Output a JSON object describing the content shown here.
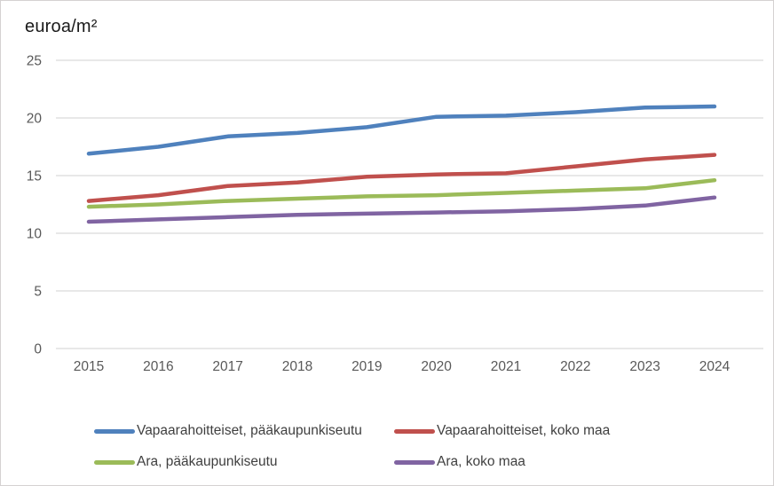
{
  "title": "euroa/m²",
  "chart_data": {
    "type": "line",
    "title": "euroa/m²",
    "xlabel": "",
    "ylabel": "euroa/m²",
    "x": [
      2015,
      2016,
      2017,
      2018,
      2019,
      2020,
      2021,
      2022,
      2023,
      2024
    ],
    "series": [
      {
        "name": "Vapaarahoitteiset, pääkaupunkiseutu",
        "color": "#4F81BD",
        "values": [
          16.9,
          17.5,
          18.4,
          18.7,
          19.2,
          20.1,
          20.2,
          20.5,
          20.9,
          21.0
        ]
      },
      {
        "name": "Vapaarahoitteiset, koko maa",
        "color": "#C0504D",
        "values": [
          12.8,
          13.3,
          14.1,
          14.4,
          14.9,
          15.1,
          15.2,
          15.8,
          16.4,
          16.8
        ]
      },
      {
        "name": "Ara, pääkaupunkiseutu",
        "color": "#9BBB59",
        "values": [
          12.3,
          12.5,
          12.8,
          13.0,
          13.2,
          13.3,
          13.5,
          13.7,
          13.9,
          14.6
        ]
      },
      {
        "name": "Ara, koko maa",
        "color": "#8064A2",
        "values": [
          11.0,
          11.2,
          11.4,
          11.6,
          11.7,
          11.8,
          11.9,
          12.1,
          12.4,
          13.1
        ]
      }
    ],
    "ylim": [
      0,
      25
    ],
    "yticks": [
      0,
      5,
      10,
      15,
      20,
      25
    ],
    "grid": true,
    "legend_position": "bottom",
    "axis_text_color": "#595959",
    "gridline_color": "#D9D9D9"
  }
}
